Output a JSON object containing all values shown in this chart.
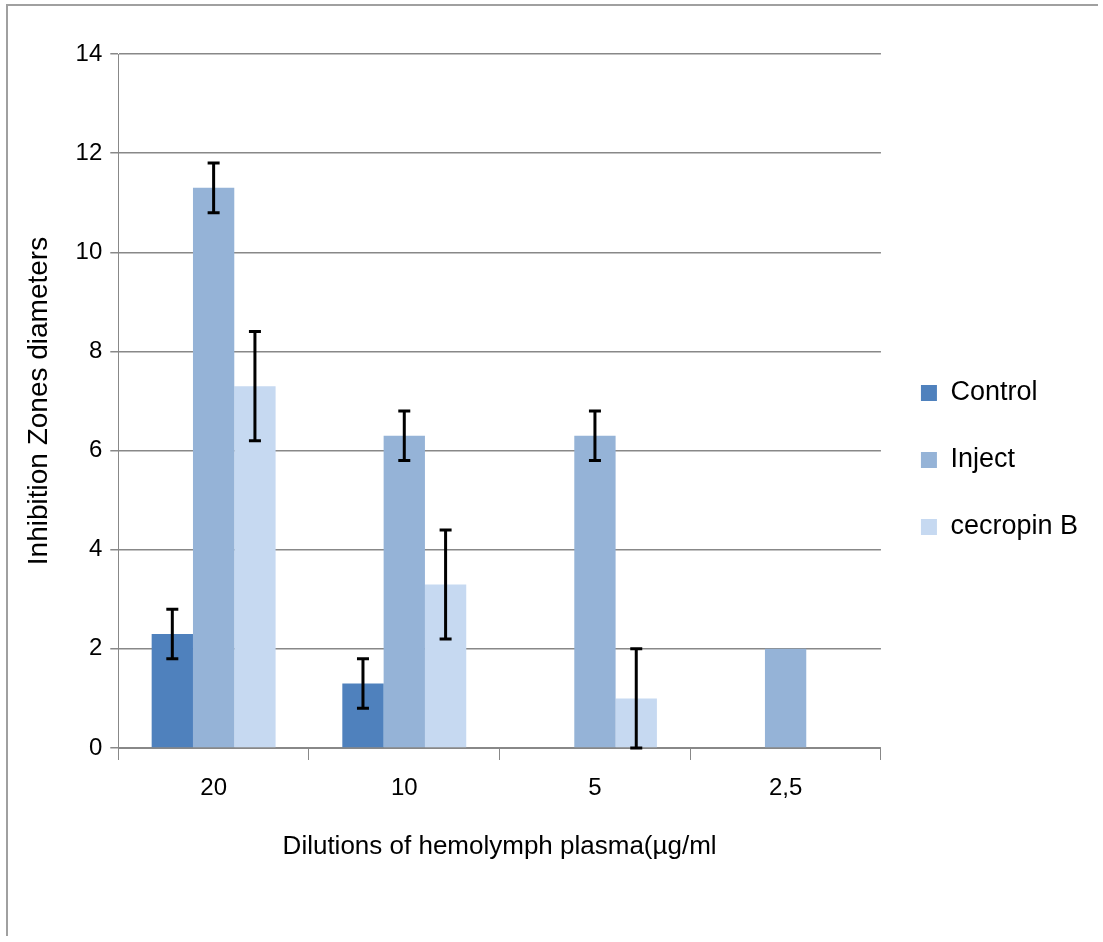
{
  "chart_data": {
    "type": "bar",
    "xlabel": "Dilutions of hemolymph plasma(µg/ml",
    "ylabel": "Inhibition Zones diameters",
    "categories": [
      "20",
      "10",
      "5",
      "2,5"
    ],
    "series": [
      {
        "name": "Control",
        "color": "#4f81bd",
        "values": [
          2.3,
          1.3,
          null,
          null
        ],
        "errors": [
          0.5,
          0.5,
          null,
          null
        ]
      },
      {
        "name": "Inject",
        "color": "#95b3d7",
        "values": [
          11.3,
          6.3,
          6.3,
          2
        ],
        "errors": [
          0.5,
          0.5,
          0.5,
          null
        ]
      },
      {
        "name": "cecropin B",
        "color": "#c6d9f1",
        "values": [
          7.3,
          3.3,
          1,
          null
        ],
        "errors": [
          1.1,
          1.1,
          1,
          null
        ]
      }
    ],
    "ylim": [
      0,
      14
    ],
    "yticks": [
      0,
      2,
      4,
      6,
      8,
      10,
      12,
      14
    ],
    "grid": "y",
    "legend": "right"
  }
}
